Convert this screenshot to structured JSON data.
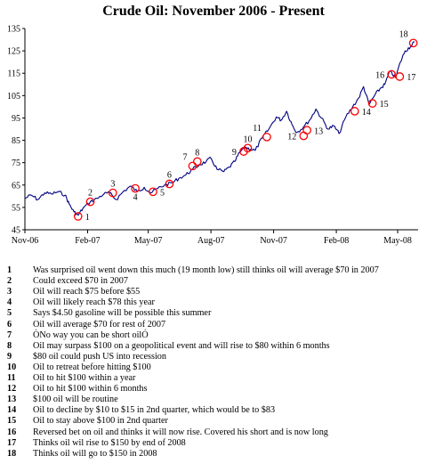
{
  "chart_data": {
    "type": "line",
    "title": "Crude Oil: November 2006 - Present",
    "xlabel": "",
    "ylabel": "",
    "x_tick_labels": [
      "Nov-06",
      "Feb-07",
      "May-07",
      "Aug-07",
      "Nov-07",
      "Feb-08",
      "May-08"
    ],
    "y_ticks": [
      45,
      55,
      65,
      75,
      85,
      95,
      105,
      115,
      125,
      135
    ],
    "ylim": [
      45,
      135
    ],
    "xlim": [
      "2006-11-01",
      "2008-05-31"
    ],
    "grid": false,
    "x_date_ticks": [
      "2006-11-01",
      "2007-02-01",
      "2007-05-01",
      "2007-08-01",
      "2007-11-01",
      "2008-02-01",
      "2008-05-01"
    ],
    "series": [
      {
        "values": [
          [
            "2006-11-01",
            59
          ],
          [
            "2006-11-10",
            60.5
          ],
          [
            "2006-11-20",
            58.5
          ],
          [
            "2006-11-30",
            61.5
          ],
          [
            "2006-12-10",
            61
          ],
          [
            "2006-12-20",
            62
          ],
          [
            "2006-12-30",
            60.5
          ],
          [
            "2007-01-05",
            56.5
          ],
          [
            "2007-01-12",
            53
          ],
          [
            "2007-01-18",
            51.5
          ],
          [
            "2007-01-25",
            54.5
          ],
          [
            "2007-02-05",
            57.5
          ],
          [
            "2007-02-15",
            59
          ],
          [
            "2007-02-25",
            61
          ],
          [
            "2007-03-05",
            61.5
          ],
          [
            "2007-03-15",
            58.5
          ],
          [
            "2007-03-25",
            62
          ],
          [
            "2007-04-05",
            64.5
          ],
          [
            "2007-04-15",
            62
          ],
          [
            "2007-04-25",
            64
          ],
          [
            "2007-05-05",
            61.5
          ],
          [
            "2007-05-15",
            63.5
          ],
          [
            "2007-05-25",
            65
          ],
          [
            "2007-06-05",
            66
          ],
          [
            "2007-06-15",
            68
          ],
          [
            "2007-06-25",
            69.5
          ],
          [
            "2007-07-05",
            72
          ],
          [
            "2007-07-15",
            74
          ],
          [
            "2007-07-25",
            75.5
          ],
          [
            "2007-08-01",
            77
          ],
          [
            "2007-08-10",
            72
          ],
          [
            "2007-08-20",
            71
          ],
          [
            "2007-08-28",
            73
          ],
          [
            "2007-09-05",
            75.5
          ],
          [
            "2007-09-12",
            79.5
          ],
          [
            "2007-09-20",
            82
          ],
          [
            "2007-09-28",
            81
          ],
          [
            "2007-10-05",
            80.5
          ],
          [
            "2007-10-15",
            86
          ],
          [
            "2007-10-25",
            90
          ],
          [
            "2007-11-05",
            95.5
          ],
          [
            "2007-11-12",
            94
          ],
          [
            "2007-11-20",
            98
          ],
          [
            "2007-11-28",
            92
          ],
          [
            "2007-12-05",
            88.5
          ],
          [
            "2007-12-15",
            91
          ],
          [
            "2007-12-25",
            94.5
          ],
          [
            "2008-01-02",
            99
          ],
          [
            "2008-01-10",
            95
          ],
          [
            "2008-01-20",
            90
          ],
          [
            "2008-01-28",
            91.5
          ],
          [
            "2008-02-05",
            88
          ],
          [
            "2008-02-15",
            95.5
          ],
          [
            "2008-02-25",
            100
          ],
          [
            "2008-03-05",
            104
          ],
          [
            "2008-03-12",
            109
          ],
          [
            "2008-03-20",
            101
          ],
          [
            "2008-03-28",
            105
          ],
          [
            "2008-04-05",
            108
          ],
          [
            "2008-04-12",
            110
          ],
          [
            "2008-04-20",
            116
          ],
          [
            "2008-04-28",
            113
          ],
          [
            "2008-05-05",
            120
          ],
          [
            "2008-05-12",
            125
          ],
          [
            "2008-05-20",
            127
          ],
          [
            "2008-05-26",
            129
          ]
        ]
      }
    ],
    "markers": [
      {
        "label": "1",
        "x": "2007-01-18",
        "y": 51,
        "label_side": "right"
      },
      {
        "label": "2",
        "x": "2007-02-05",
        "y": 57.5,
        "label_side": "top"
      },
      {
        "label": "3",
        "x": "2007-03-10",
        "y": 61.5,
        "label_side": "top"
      },
      {
        "label": "4",
        "x": "2007-04-12",
        "y": 63.5,
        "label_side": "below"
      },
      {
        "label": "5",
        "x": "2007-05-08",
        "y": 62,
        "label_side": "right"
      },
      {
        "label": "6",
        "x": "2007-06-01",
        "y": 65.5,
        "label_side": "top"
      },
      {
        "label": "7",
        "x": "2007-07-05",
        "y": 73.5,
        "label_side": "topleft"
      },
      {
        "label": "8",
        "x": "2007-07-12",
        "y": 75.5,
        "label_side": "top"
      },
      {
        "label": "9",
        "x": "2007-09-18",
        "y": 80,
        "label_side": "left"
      },
      {
        "label": "10",
        "x": "2007-09-24",
        "y": 81.5,
        "label_side": "top"
      },
      {
        "label": "11",
        "x": "2007-10-22",
        "y": 86.5,
        "label_side": "topleft"
      },
      {
        "label": "12",
        "x": "2007-12-15",
        "y": 87,
        "label_side": "left"
      },
      {
        "label": "13",
        "x": "2007-12-20",
        "y": 89.5,
        "label_side": "right"
      },
      {
        "label": "14",
        "x": "2008-02-28",
        "y": 98,
        "label_side": "right"
      },
      {
        "label": "15",
        "x": "2008-03-25",
        "y": 101.5,
        "label_side": "right"
      },
      {
        "label": "16",
        "x": "2008-04-22",
        "y": 114.5,
        "label_side": "left"
      },
      {
        "label": "17",
        "x": "2008-05-04",
        "y": 113.5,
        "label_side": "right"
      },
      {
        "label": "18",
        "x": "2008-05-24",
        "y": 128.5,
        "label_side": "topleft"
      }
    ]
  },
  "notes": [
    {
      "num": "1",
      "text": "Was surprised oil went down this much (19 month low) still thinks oil will average $70 in 2007"
    },
    {
      "num": "2",
      "text": "Could exceed $70 in 2007"
    },
    {
      "num": "3",
      "text": "Oil will reach $75 before $55"
    },
    {
      "num": "4",
      "text": "Oil will likely reach $78 this year"
    },
    {
      "num": "5",
      "text": "Says $4.50 gasoline will be possible this summer"
    },
    {
      "num": "6",
      "text": "Oil will average $70 for rest of 2007"
    },
    {
      "num": "7",
      "text": "ÒNo way you can be short oilÓ"
    },
    {
      "num": "8",
      "text": "Oil may surpass $100 on a geopolitical event and will rise to $80 within 6 months"
    },
    {
      "num": "9",
      "text": "$80 oil could push US into recession"
    },
    {
      "num": "10",
      "text": "Oil to retreat before hitting $100"
    },
    {
      "num": "11",
      "text": "Oil to hit $100 within a year"
    },
    {
      "num": "12",
      "text": "Oil to hit $100 within 6 months"
    },
    {
      "num": "13",
      "text": "$100 oil will be routine"
    },
    {
      "num": "14",
      "text": "Oil to decline by $10 to $15 in 2nd quarter, which would be to $83"
    },
    {
      "num": "15",
      "text": "Oil to stay above $100 in 2nd quarter"
    },
    {
      "num": "16",
      "text": "Reversed bet on oil and thinks it will now rise.  Covered his short and is now long"
    },
    {
      "num": "17",
      "text": "Thinks oil wil rise to $150 by end of 2008"
    },
    {
      "num": "18",
      "text": "Thinks oil will go to $150 in 2008"
    }
  ],
  "colors": {
    "line": "#000080",
    "marker": "#ff0000",
    "axis": "#000000"
  }
}
